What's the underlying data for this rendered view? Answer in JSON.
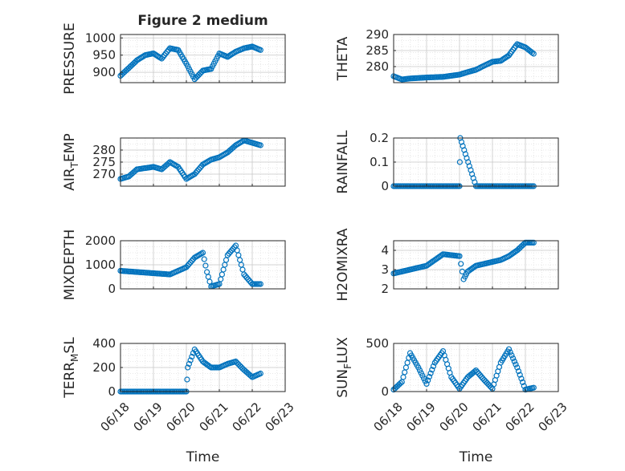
{
  "figure": {
    "title": "Figure 2 medium",
    "marker_color": "#0072BD",
    "axis_color": "#262626",
    "grid_color": "#c8c8c8"
  },
  "chart_data": [
    {
      "type": "scatter",
      "ylabel": "PRESSURE",
      "title": "Figure 2 medium",
      "xlim": [
        "06/18",
        "06/23"
      ],
      "ylim": [
        870,
        1010
      ],
      "yticks": [
        900,
        950,
        1000
      ],
      "x_tick_labels": [],
      "grid": true,
      "x": [
        "06/18 00:00",
        "06/18 12:00",
        "06/18 18:00",
        "06/19 00:00",
        "06/19 06:00",
        "06/19 12:00",
        "06/19 18:00",
        "06/20 00:00",
        "06/20 06:00",
        "06/20 12:00",
        "06/20 18:00",
        "06/21 00:00",
        "06/21 06:00",
        "06/21 12:00",
        "06/21 18:00",
        "06/22 00:00",
        "06/22 06:00"
      ],
      "values": [
        890,
        935,
        950,
        955,
        940,
        970,
        965,
        925,
        880,
        905,
        910,
        955,
        945,
        960,
        970,
        975,
        965
      ]
    },
    {
      "type": "scatter",
      "ylabel": "THETA",
      "xlim": [
        "06/18",
        "06/23"
      ],
      "ylim": [
        275,
        290
      ],
      "yticks": [
        280,
        285,
        290
      ],
      "x_tick_labels": [],
      "grid": true,
      "x": [
        "06/18 00:00",
        "06/18 06:00",
        "06/18 12:00",
        "06/19 00:00",
        "06/19 12:00",
        "06/20 00:00",
        "06/20 06:00",
        "06/20 12:00",
        "06/20 18:00",
        "06/21 00:00",
        "06/21 06:00",
        "06/21 12:00",
        "06/21 18:00",
        "06/22 00:00",
        "06/22 06:00"
      ],
      "values": [
        277,
        276,
        276.3,
        276.6,
        276.8,
        277.5,
        278.3,
        279,
        280.3,
        281.5,
        281.8,
        283.5,
        287,
        286,
        284
      ]
    },
    {
      "type": "scatter",
      "ylabel": "AIR_TEMP",
      "xlim": [
        "06/18",
        "06/23"
      ],
      "ylim": [
        265,
        285
      ],
      "yticks": [
        270,
        275,
        280
      ],
      "x_tick_labels": [],
      "grid": true,
      "x": [
        "06/18 00:00",
        "06/18 06:00",
        "06/18 12:00",
        "06/19 00:00",
        "06/19 06:00",
        "06/19 12:00",
        "06/19 18:00",
        "06/20 00:00",
        "06/20 06:00",
        "06/20 12:00",
        "06/20 18:00",
        "06/21 00:00",
        "06/21 06:00",
        "06/21 12:00",
        "06/21 18:00",
        "06/22 00:00",
        "06/22 06:00"
      ],
      "values": [
        268,
        269,
        272,
        273,
        272,
        275,
        273,
        268,
        270,
        274,
        276,
        277,
        279,
        282,
        284,
        283,
        282
      ]
    },
    {
      "type": "scatter",
      "ylabel": "RAINFALL",
      "xlim": [
        "06/18",
        "06/23"
      ],
      "ylim": [
        0,
        0.2
      ],
      "yticks": [
        0,
        0.1,
        0.2
      ],
      "x_tick_labels": [],
      "grid": true,
      "x": [
        "06/18 00:00",
        "06/18 12:00",
        "06/19 00:00",
        "06/19 12:00",
        "06/20 00:00",
        "06/20 00:30",
        "06/20 12:00",
        "06/21 00:00",
        "06/21 12:00",
        "06/22 00:00",
        "06/22 06:00"
      ],
      "values": [
        0,
        0,
        0,
        0,
        0,
        0.2,
        0,
        0,
        0,
        0,
        0
      ]
    },
    {
      "type": "scatter",
      "ylabel": "MIXDEPTH",
      "xlim": [
        "06/18",
        "06/23"
      ],
      "ylim": [
        0,
        2000
      ],
      "yticks": [
        0,
        1000,
        2000
      ],
      "x_tick_labels": [],
      "grid": true,
      "x": [
        "06/18 00:00",
        "06/18 12:00",
        "06/19 00:00",
        "06/19 12:00",
        "06/20 00:00",
        "06/20 06:00",
        "06/20 12:00",
        "06/20 15:00",
        "06/20 18:00",
        "06/21 00:00",
        "06/21 06:00",
        "06/21 12:00",
        "06/21 18:00",
        "06/22 00:00",
        "06/22 06:00"
      ],
      "values": [
        750,
        700,
        650,
        600,
        900,
        1300,
        1500,
        700,
        100,
        200,
        1400,
        1800,
        600,
        200,
        200
      ]
    },
    {
      "type": "scatter",
      "ylabel": "H2OMIXRA",
      "xlim": [
        "06/18",
        "06/23"
      ],
      "ylim": [
        2,
        4.5
      ],
      "yticks": [
        2,
        3,
        4
      ],
      "x_tick_labels": [],
      "grid": true,
      "x": [
        "06/18 00:00",
        "06/18 12:00",
        "06/19 00:00",
        "06/19 12:00",
        "06/20 00:00",
        "06/20 03:00",
        "06/20 06:00",
        "06/20 12:00",
        "06/21 00:00",
        "06/21 06:00",
        "06/21 12:00",
        "06/21 18:00",
        "06/22 00:00",
        "06/22 06:00"
      ],
      "values": [
        2.8,
        3.0,
        3.2,
        3.8,
        3.7,
        2.5,
        2.9,
        3.2,
        3.4,
        3.5,
        3.7,
        4.0,
        4.4,
        4.4
      ]
    },
    {
      "type": "scatter",
      "ylabel": "TERR_MSL",
      "xlim": [
        "06/18",
        "06/23"
      ],
      "ylim": [
        0,
        400
      ],
      "yticks": [
        0,
        200,
        400
      ],
      "x_tick_labels": [
        "06/18",
        "06/19",
        "06/20",
        "06/21",
        "06/22",
        "06/23"
      ],
      "xlabel": "Time",
      "grid": true,
      "x": [
        "06/18 00:00",
        "06/18 12:00",
        "06/19 00:00",
        "06/19 12:00",
        "06/20 00:00",
        "06/20 01:00",
        "06/20 06:00",
        "06/20 12:00",
        "06/20 18:00",
        "06/21 00:00",
        "06/21 06:00",
        "06/21 12:00",
        "06/21 18:00",
        "06/22 00:00",
        "06/22 06:00"
      ],
      "values": [
        0,
        0,
        0,
        0,
        0,
        200,
        350,
        250,
        200,
        200,
        230,
        250,
        180,
        120,
        150
      ]
    },
    {
      "type": "scatter",
      "ylabel": "SUN_FLUX",
      "xlim": [
        "06/18",
        "06/23"
      ],
      "ylim": [
        0,
        500
      ],
      "yticks": [
        0,
        500
      ],
      "x_tick_labels": [
        "06/18",
        "06/19",
        "06/20",
        "06/21",
        "06/22",
        "06/23"
      ],
      "xlabel": "Time",
      "grid": true,
      "x": [
        "06/18 00:00",
        "06/18 06:00",
        "06/18 12:00",
        "06/18 18:00",
        "06/19 00:00",
        "06/19 06:00",
        "06/19 12:00",
        "06/19 18:00",
        "06/20 00:00",
        "06/20 06:00",
        "06/20 12:00",
        "06/20 18:00",
        "06/21 00:00",
        "06/21 06:00",
        "06/21 12:00",
        "06/21 18:00",
        "06/22 00:00",
        "06/22 06:00"
      ],
      "values": [
        20,
        100,
        400,
        250,
        80,
        300,
        420,
        150,
        30,
        150,
        220,
        120,
        30,
        300,
        440,
        250,
        20,
        40
      ]
    }
  ]
}
